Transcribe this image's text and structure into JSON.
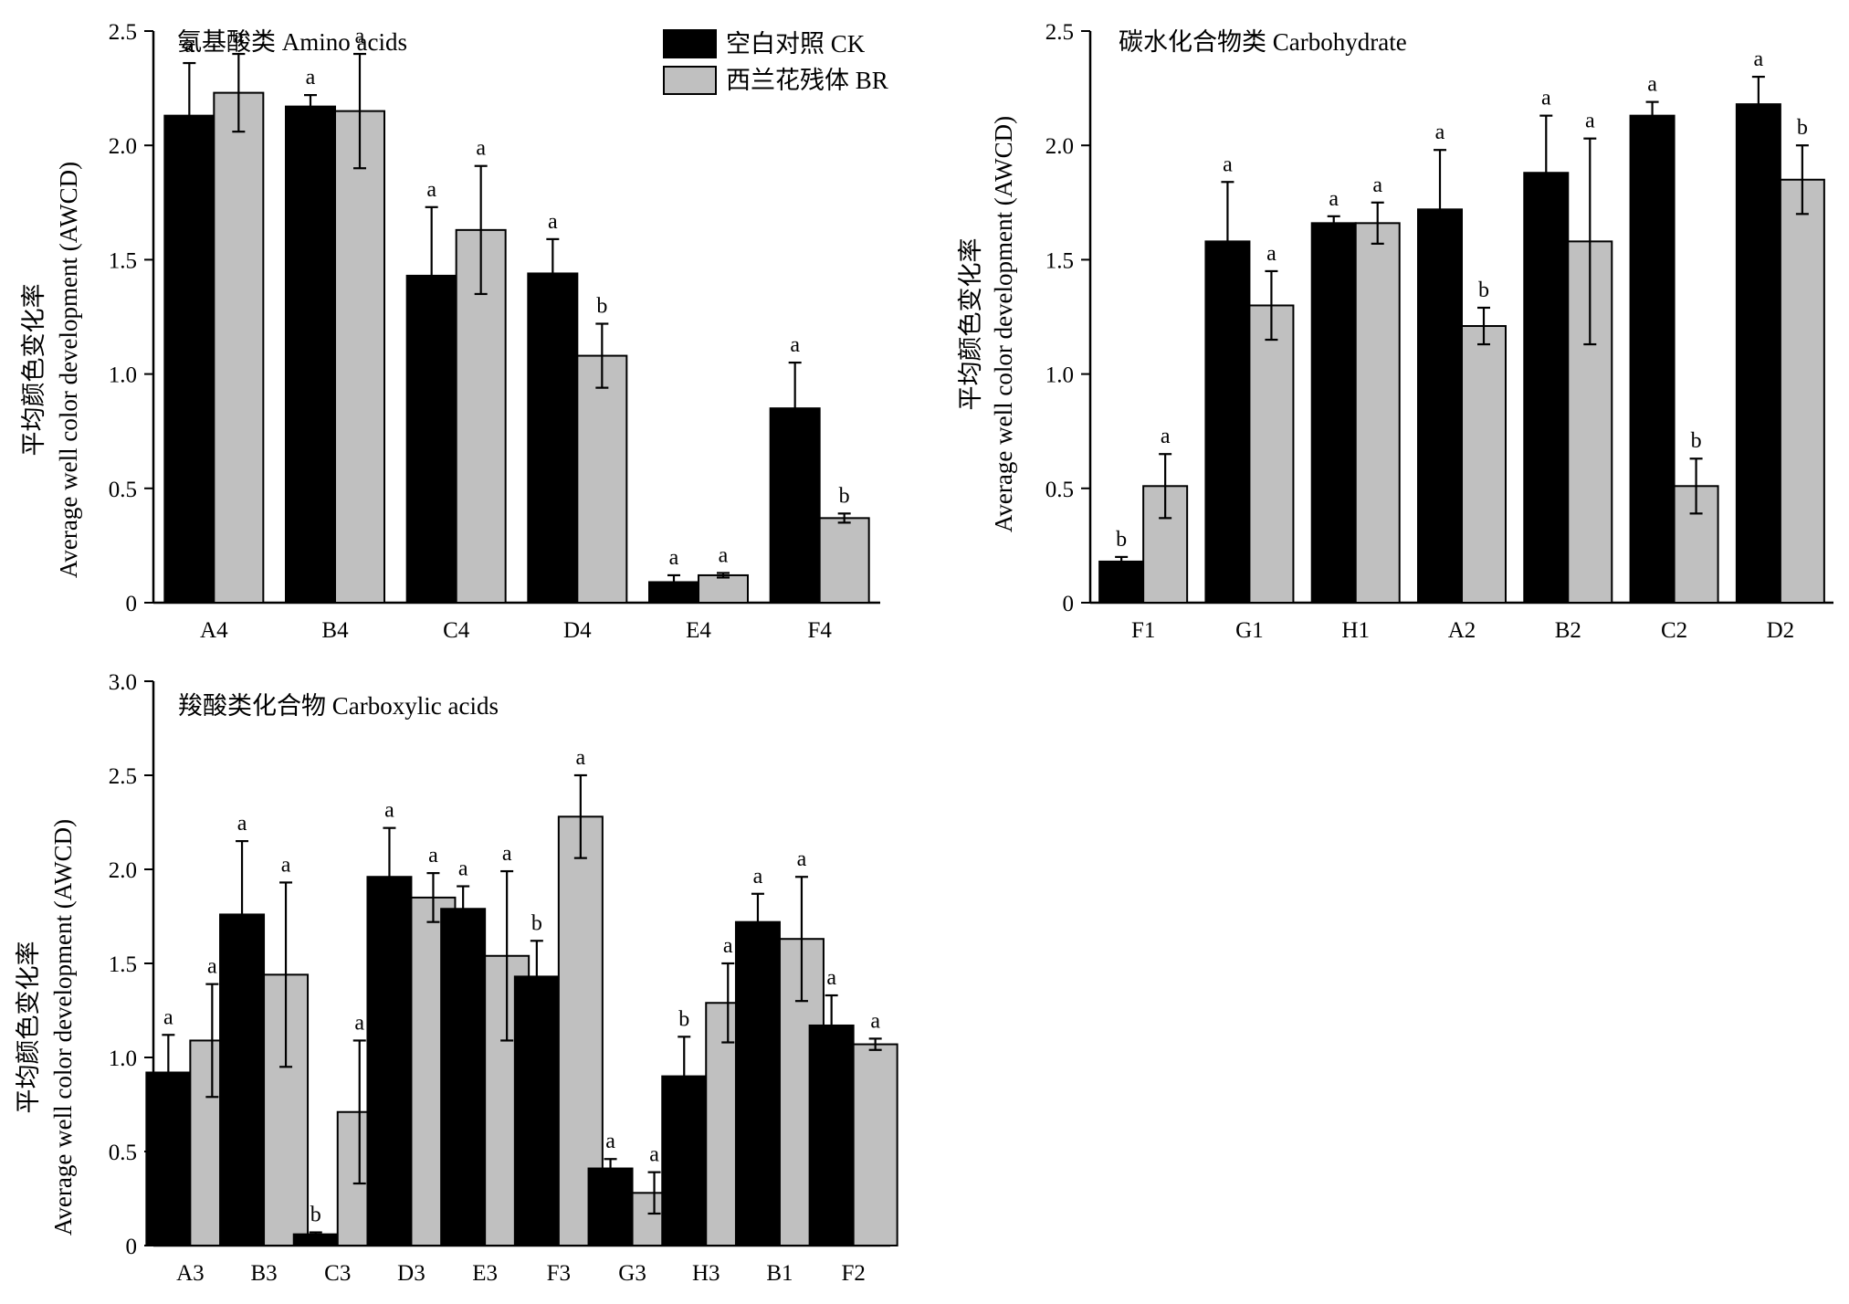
{
  "legend": [
    {
      "name": "空白对照 CK",
      "color": "#000000"
    },
    {
      "name": "西兰花残体 BR",
      "color": "#c0c0c0"
    }
  ],
  "chart_data": [
    {
      "type": "bar",
      "title": "氨基酸类 Amino acids",
      "ylabel_line1": "平均颜色变化率",
      "ylabel_line2": "Average well color development (AWCD)",
      "categories": [
        "A4",
        "B4",
        "C4",
        "D4",
        "E4",
        "F4"
      ],
      "ylim": [
        0,
        2.5
      ],
      "yticks": [
        "0",
        "0.5",
        "1.0",
        "1.5",
        "2.0",
        "2.5"
      ],
      "series": [
        {
          "name": "空白对照 CK",
          "values": [
            2.13,
            2.17,
            1.43,
            1.44,
            0.09,
            0.85
          ],
          "errors": [
            0.23,
            0.05,
            0.3,
            0.15,
            0.03,
            0.2
          ],
          "labels": [
            "a",
            "a",
            "a",
            "a",
            "a",
            "a"
          ]
        },
        {
          "name": "西兰花残体 BR",
          "values": [
            2.23,
            2.15,
            1.63,
            1.08,
            0.12,
            0.37
          ],
          "errors": [
            0.17,
            0.25,
            0.28,
            0.14,
            0.01,
            0.02
          ],
          "labels": [
            "a",
            "a",
            "a",
            "b",
            "a",
            "b"
          ]
        }
      ],
      "grid": false,
      "legend_position": "top-right"
    },
    {
      "type": "bar",
      "title": "碳水化合物类 Carbohydrate",
      "ylabel_line1": "平均颜色变化率",
      "ylabel_line2": "Average well color development (AWCD)",
      "categories": [
        "F1",
        "G1",
        "H1",
        "A2",
        "B2",
        "C2",
        "D2"
      ],
      "ylim": [
        0,
        2.5
      ],
      "yticks": [
        "0",
        "0.5",
        "1.0",
        "1.5",
        "2.0",
        "2.5"
      ],
      "series": [
        {
          "name": "空白对照 CK",
          "values": [
            0.18,
            1.58,
            1.66,
            1.72,
            1.88,
            2.13,
            2.18
          ],
          "errors": [
            0.02,
            0.26,
            0.03,
            0.26,
            0.25,
            0.06,
            0.12
          ],
          "labels": [
            "b",
            "a",
            "a",
            "a",
            "a",
            "a",
            "a"
          ]
        },
        {
          "name": "西兰花残体 BR",
          "values": [
            0.51,
            1.3,
            1.66,
            1.21,
            1.58,
            0.51,
            1.85
          ],
          "errors": [
            0.14,
            0.15,
            0.09,
            0.08,
            0.45,
            0.12,
            0.15
          ],
          "labels": [
            "a",
            "a",
            "a",
            "b",
            "a",
            "b",
            "b"
          ]
        }
      ],
      "grid": false
    },
    {
      "type": "bar",
      "title": "羧酸类化合物 Carboxylic acids",
      "ylabel_line1": "平均颜色变化率",
      "ylabel_line2": "Average well color development (AWCD)",
      "categories": [
        "A3",
        "B3",
        "C3",
        "D3",
        "E3",
        "F3",
        "G3",
        "H3",
        "B1",
        "F2"
      ],
      "ylim": [
        0,
        3.0
      ],
      "yticks": [
        "0",
        "0.5",
        "1.0",
        "1.5",
        "2.0",
        "2.5",
        "3.0"
      ],
      "series": [
        {
          "name": "空白对照 CK",
          "values": [
            0.92,
            1.76,
            0.06,
            1.96,
            1.79,
            1.43,
            0.41,
            0.9,
            1.72,
            1.17
          ],
          "errors": [
            0.2,
            0.39,
            0.01,
            0.26,
            0.12,
            0.19,
            0.05,
            0.21,
            0.15,
            0.16
          ],
          "labels": [
            "a",
            "a",
            "b",
            "a",
            "a",
            "b",
            "a",
            "b",
            "a",
            "a"
          ]
        },
        {
          "name": "西兰花残体 BR",
          "values": [
            1.09,
            1.44,
            0.71,
            1.85,
            1.54,
            2.28,
            0.28,
            1.29,
            1.63,
            1.07
          ],
          "errors": [
            0.3,
            0.49,
            0.38,
            0.13,
            0.45,
            0.22,
            0.11,
            0.21,
            0.33,
            0.03
          ],
          "labels": [
            "a",
            "a",
            "a",
            "a",
            "a",
            "a",
            "a",
            "a",
            "a",
            "a"
          ]
        }
      ],
      "grid": false
    }
  ]
}
